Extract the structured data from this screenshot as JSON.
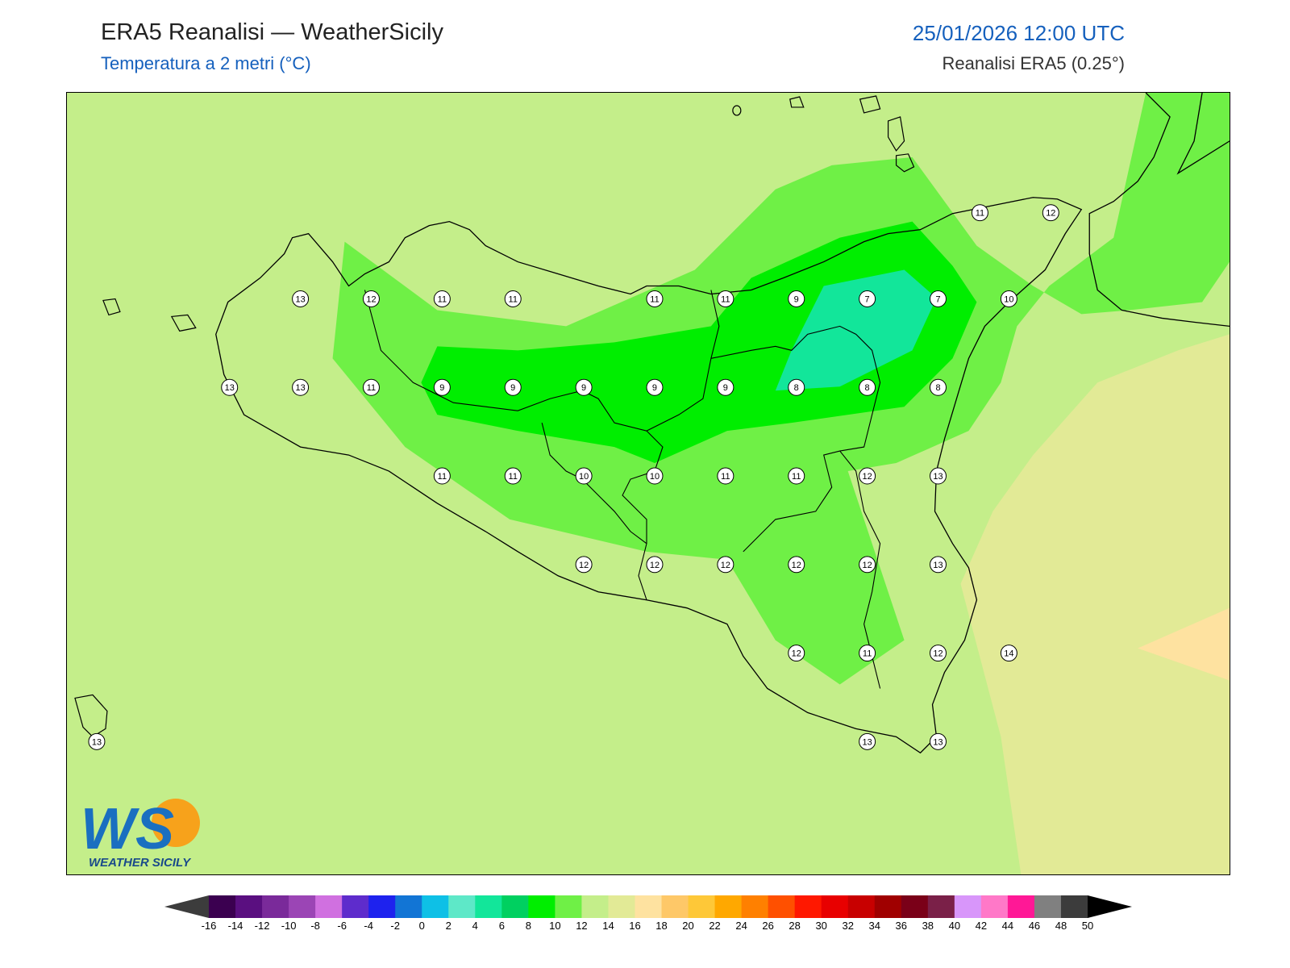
{
  "header": {
    "title": "ERA5 Reanalisi — WeatherSicily",
    "subtitle": "Temperatura a 2 metri (°C)",
    "datetime": "25/01/2026 12:00 UTC",
    "source": "Reanalisi ERA5 (0.25°)"
  },
  "logo": {
    "text_big": "WS",
    "text_small": "WEATHER SICILY"
  },
  "map_values": [
    {
      "label": "11"
    },
    {
      "label": "12"
    },
    {
      "label": "13"
    },
    {
      "label": "12"
    },
    {
      "label": "11"
    },
    {
      "label": "11"
    },
    {
      "label": "11"
    },
    {
      "label": "11"
    },
    {
      "label": "9"
    },
    {
      "label": "7"
    },
    {
      "label": "7"
    },
    {
      "label": "10"
    },
    {
      "label": "13"
    },
    {
      "label": "13"
    },
    {
      "label": "11"
    },
    {
      "label": "9"
    },
    {
      "label": "9"
    },
    {
      "label": "9"
    },
    {
      "label": "9"
    },
    {
      "label": "9"
    },
    {
      "label": "8"
    },
    {
      "label": "8"
    },
    {
      "label": "8"
    },
    {
      "label": "11"
    },
    {
      "label": "11"
    },
    {
      "label": "10"
    },
    {
      "label": "10"
    },
    {
      "label": "11"
    },
    {
      "label": "11"
    },
    {
      "label": "12"
    },
    {
      "label": "13"
    },
    {
      "label": "12"
    },
    {
      "label": "12"
    },
    {
      "label": "12"
    },
    {
      "label": "12"
    },
    {
      "label": "12"
    },
    {
      "label": "13"
    },
    {
      "label": "12"
    },
    {
      "label": "11"
    },
    {
      "label": "12"
    },
    {
      "label": "14"
    },
    {
      "label": "13"
    },
    {
      "label": "13"
    },
    {
      "label": "13"
    }
  ],
  "colorbar": {
    "colors": [
      "#3b0050",
      "#5a0f80",
      "#7a2a9a",
      "#9b45b5",
      "#d070e0",
      "#5e2ccc",
      "#1e22ee",
      "#1275d5",
      "#0ec0e6",
      "#5ee8c8",
      "#12e69a",
      "#00d060",
      "#00ee00",
      "#6ff046",
      "#c4ee8a",
      "#e2ea96",
      "#fee2a0",
      "#fec868",
      "#fec838",
      "#ffa800",
      "#ff8000",
      "#ff5000",
      "#ff1800",
      "#e80000",
      "#c80000",
      "#a00000",
      "#7a0018",
      "#7a2048",
      "#d896fa",
      "#ff78c8",
      "#ff1896",
      "#808080",
      "#3c3c3c"
    ],
    "under_color": "#3c3c3c",
    "over_color": "#000000",
    "tick_labels": [
      "-16",
      "-14",
      "-12",
      "-10",
      "-8",
      "-6",
      "-4",
      "-2",
      "0",
      "2",
      "4",
      "6",
      "8",
      "10",
      "12",
      "14",
      "16",
      "18",
      "20",
      "22",
      "24",
      "26",
      "28",
      "30",
      "32",
      "34",
      "36",
      "38",
      "40",
      "42",
      "44",
      "46",
      "48",
      "50"
    ]
  }
}
